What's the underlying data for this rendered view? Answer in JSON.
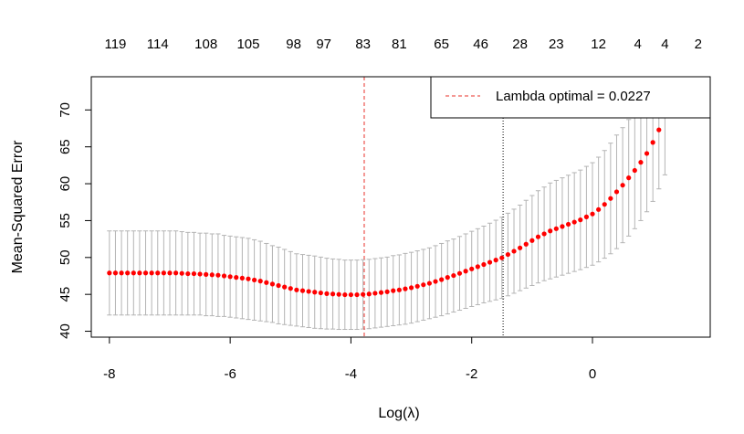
{
  "chart_data": {
    "type": "scatter",
    "xlabel": "Log(λ)",
    "ylabel": "Mean-Squared Error",
    "xlim": [
      -8.3,
      1.95
    ],
    "ylim": [
      39.2,
      74.5
    ],
    "x_ticks": [
      -8,
      -6,
      -4,
      -2,
      0
    ],
    "y_ticks": [
      40,
      45,
      50,
      55,
      60,
      65,
      70
    ],
    "top_axis_labels": [
      "119",
      "114",
      "108",
      "105",
      "98",
      "97",
      "83",
      "81",
      "65",
      "46",
      "28",
      "23",
      "12",
      "4",
      "4",
      "2"
    ],
    "top_axis_positions": [
      -7.9,
      -7.2,
      -6.4,
      -5.7,
      -4.95,
      -4.45,
      -3.8,
      -3.2,
      -2.5,
      -1.85,
      -1.2,
      -0.6,
      0.1,
      0.75,
      1.2,
      1.75
    ],
    "series": [
      {
        "x": [
          -8.0,
          -7.9,
          -7.8,
          -7.7,
          -7.6,
          -7.5,
          -7.4,
          -7.3,
          -7.2,
          -7.1,
          -7.0,
          -6.9,
          -6.8,
          -6.7,
          -6.6,
          -6.5,
          -6.4,
          -6.3,
          -6.2,
          -6.1,
          -6.0,
          -5.9,
          -5.8,
          -5.7,
          -5.6,
          -5.5,
          -5.4,
          -5.3,
          -5.2,
          -5.1,
          -5.0,
          -4.9,
          -4.8,
          -4.7,
          -4.6,
          -4.5,
          -4.4,
          -4.3,
          -4.2,
          -4.1,
          -4.0,
          -3.9,
          -3.8,
          -3.7,
          -3.6,
          -3.5,
          -3.4,
          -3.3,
          -3.2,
          -3.1,
          -3.0,
          -2.9,
          -2.8,
          -2.7,
          -2.6,
          -2.5,
          -2.4,
          -2.3,
          -2.2,
          -2.1,
          -2.0,
          -1.9,
          -1.8,
          -1.7,
          -1.6,
          -1.5,
          -1.4,
          -1.3,
          -1.2,
          -1.1,
          -1.0,
          -0.9,
          -0.8,
          -0.7,
          -0.6,
          -0.5,
          -0.4,
          -0.3,
          -0.2,
          -0.1,
          0.0,
          0.1,
          0.2,
          0.3,
          0.4,
          0.5,
          0.6,
          0.7,
          0.8,
          0.9,
          1.0,
          1.1,
          1.2
        ],
        "y": [
          47.9,
          47.9,
          47.9,
          47.9,
          47.9,
          47.9,
          47.9,
          47.9,
          47.9,
          47.9,
          47.9,
          47.9,
          47.85,
          47.8,
          47.8,
          47.75,
          47.7,
          47.65,
          47.6,
          47.5,
          47.4,
          47.3,
          47.2,
          47.1,
          46.95,
          46.8,
          46.6,
          46.4,
          46.2,
          46.0,
          45.8,
          45.6,
          45.5,
          45.4,
          45.3,
          45.2,
          45.1,
          45.05,
          45.0,
          44.95,
          44.95,
          44.95,
          45.0,
          45.05,
          45.15,
          45.25,
          45.35,
          45.5,
          45.6,
          45.75,
          45.9,
          46.1,
          46.3,
          46.5,
          46.75,
          47.0,
          47.3,
          47.55,
          47.85,
          48.15,
          48.45,
          48.75,
          49.05,
          49.35,
          49.65,
          49.95,
          50.4,
          50.85,
          51.3,
          51.8,
          52.3,
          52.8,
          53.2,
          53.6,
          53.9,
          54.2,
          54.5,
          54.8,
          55.1,
          55.5,
          55.9,
          56.5,
          57.2,
          58.0,
          58.9,
          59.8,
          60.8,
          61.8,
          62.9,
          64.1,
          65.6,
          67.3,
          69.2
        ],
        "lower": [
          42.2,
          42.2,
          42.2,
          42.2,
          42.2,
          42.2,
          42.2,
          42.2,
          42.2,
          42.2,
          42.2,
          42.2,
          42.2,
          42.2,
          42.2,
          42.2,
          42.1,
          42.1,
          42.0,
          42.0,
          41.9,
          41.8,
          41.7,
          41.6,
          41.5,
          41.4,
          41.3,
          41.2,
          41.0,
          40.9,
          40.8,
          40.7,
          40.6,
          40.5,
          40.4,
          40.35,
          40.3,
          40.3,
          40.25,
          40.25,
          40.25,
          40.25,
          40.3,
          40.35,
          40.45,
          40.55,
          40.65,
          40.75,
          40.85,
          40.95,
          41.1,
          41.3,
          41.5,
          41.7,
          41.9,
          42.1,
          42.35,
          42.6,
          42.85,
          43.1,
          43.35,
          43.6,
          43.85,
          44.05,
          44.25,
          44.45,
          44.8,
          45.15,
          45.5,
          45.85,
          46.2,
          46.55,
          46.85,
          47.1,
          47.35,
          47.6,
          47.85,
          48.1,
          48.35,
          48.65,
          48.95,
          49.4,
          49.9,
          50.5,
          51.2,
          52.0,
          52.9,
          53.9,
          55.0,
          56.2,
          57.6,
          59.3,
          61.2
        ],
        "upper": [
          53.6,
          53.6,
          53.6,
          53.6,
          53.6,
          53.6,
          53.6,
          53.6,
          53.6,
          53.6,
          53.6,
          53.6,
          53.5,
          53.4,
          53.4,
          53.3,
          53.3,
          53.2,
          53.2,
          53.0,
          52.9,
          52.8,
          52.7,
          52.6,
          52.4,
          52.2,
          51.9,
          51.6,
          51.4,
          51.1,
          50.8,
          50.5,
          50.4,
          50.3,
          50.2,
          50.05,
          49.9,
          49.8,
          49.75,
          49.65,
          49.65,
          49.65,
          49.7,
          49.75,
          49.85,
          49.95,
          50.05,
          50.25,
          50.35,
          50.55,
          50.7,
          50.9,
          51.1,
          51.3,
          51.6,
          51.9,
          52.25,
          52.5,
          52.85,
          53.2,
          53.55,
          53.9,
          54.25,
          54.65,
          55.05,
          55.45,
          56.0,
          56.55,
          57.1,
          57.75,
          58.4,
          59.05,
          59.55,
          60.1,
          60.45,
          60.8,
          61.15,
          61.5,
          61.85,
          62.35,
          62.85,
          63.6,
          64.5,
          65.5,
          66.6,
          67.6,
          68.7,
          69.7,
          70.8,
          72.0,
          73.6,
          75.3,
          77.2
        ]
      }
    ],
    "vlines": [
      {
        "x": -3.78,
        "style": "dashed",
        "color": "#e8302a"
      },
      {
        "x": -1.48,
        "style": "dotted",
        "color": "#000000"
      }
    ],
    "legend": {
      "label": "Lambda optimal = 0.0227",
      "position": "top-right",
      "color": "#e8302a"
    },
    "point_color": "#ff0000",
    "errorbar_color": "#b4b4b4",
    "grid": false
  }
}
